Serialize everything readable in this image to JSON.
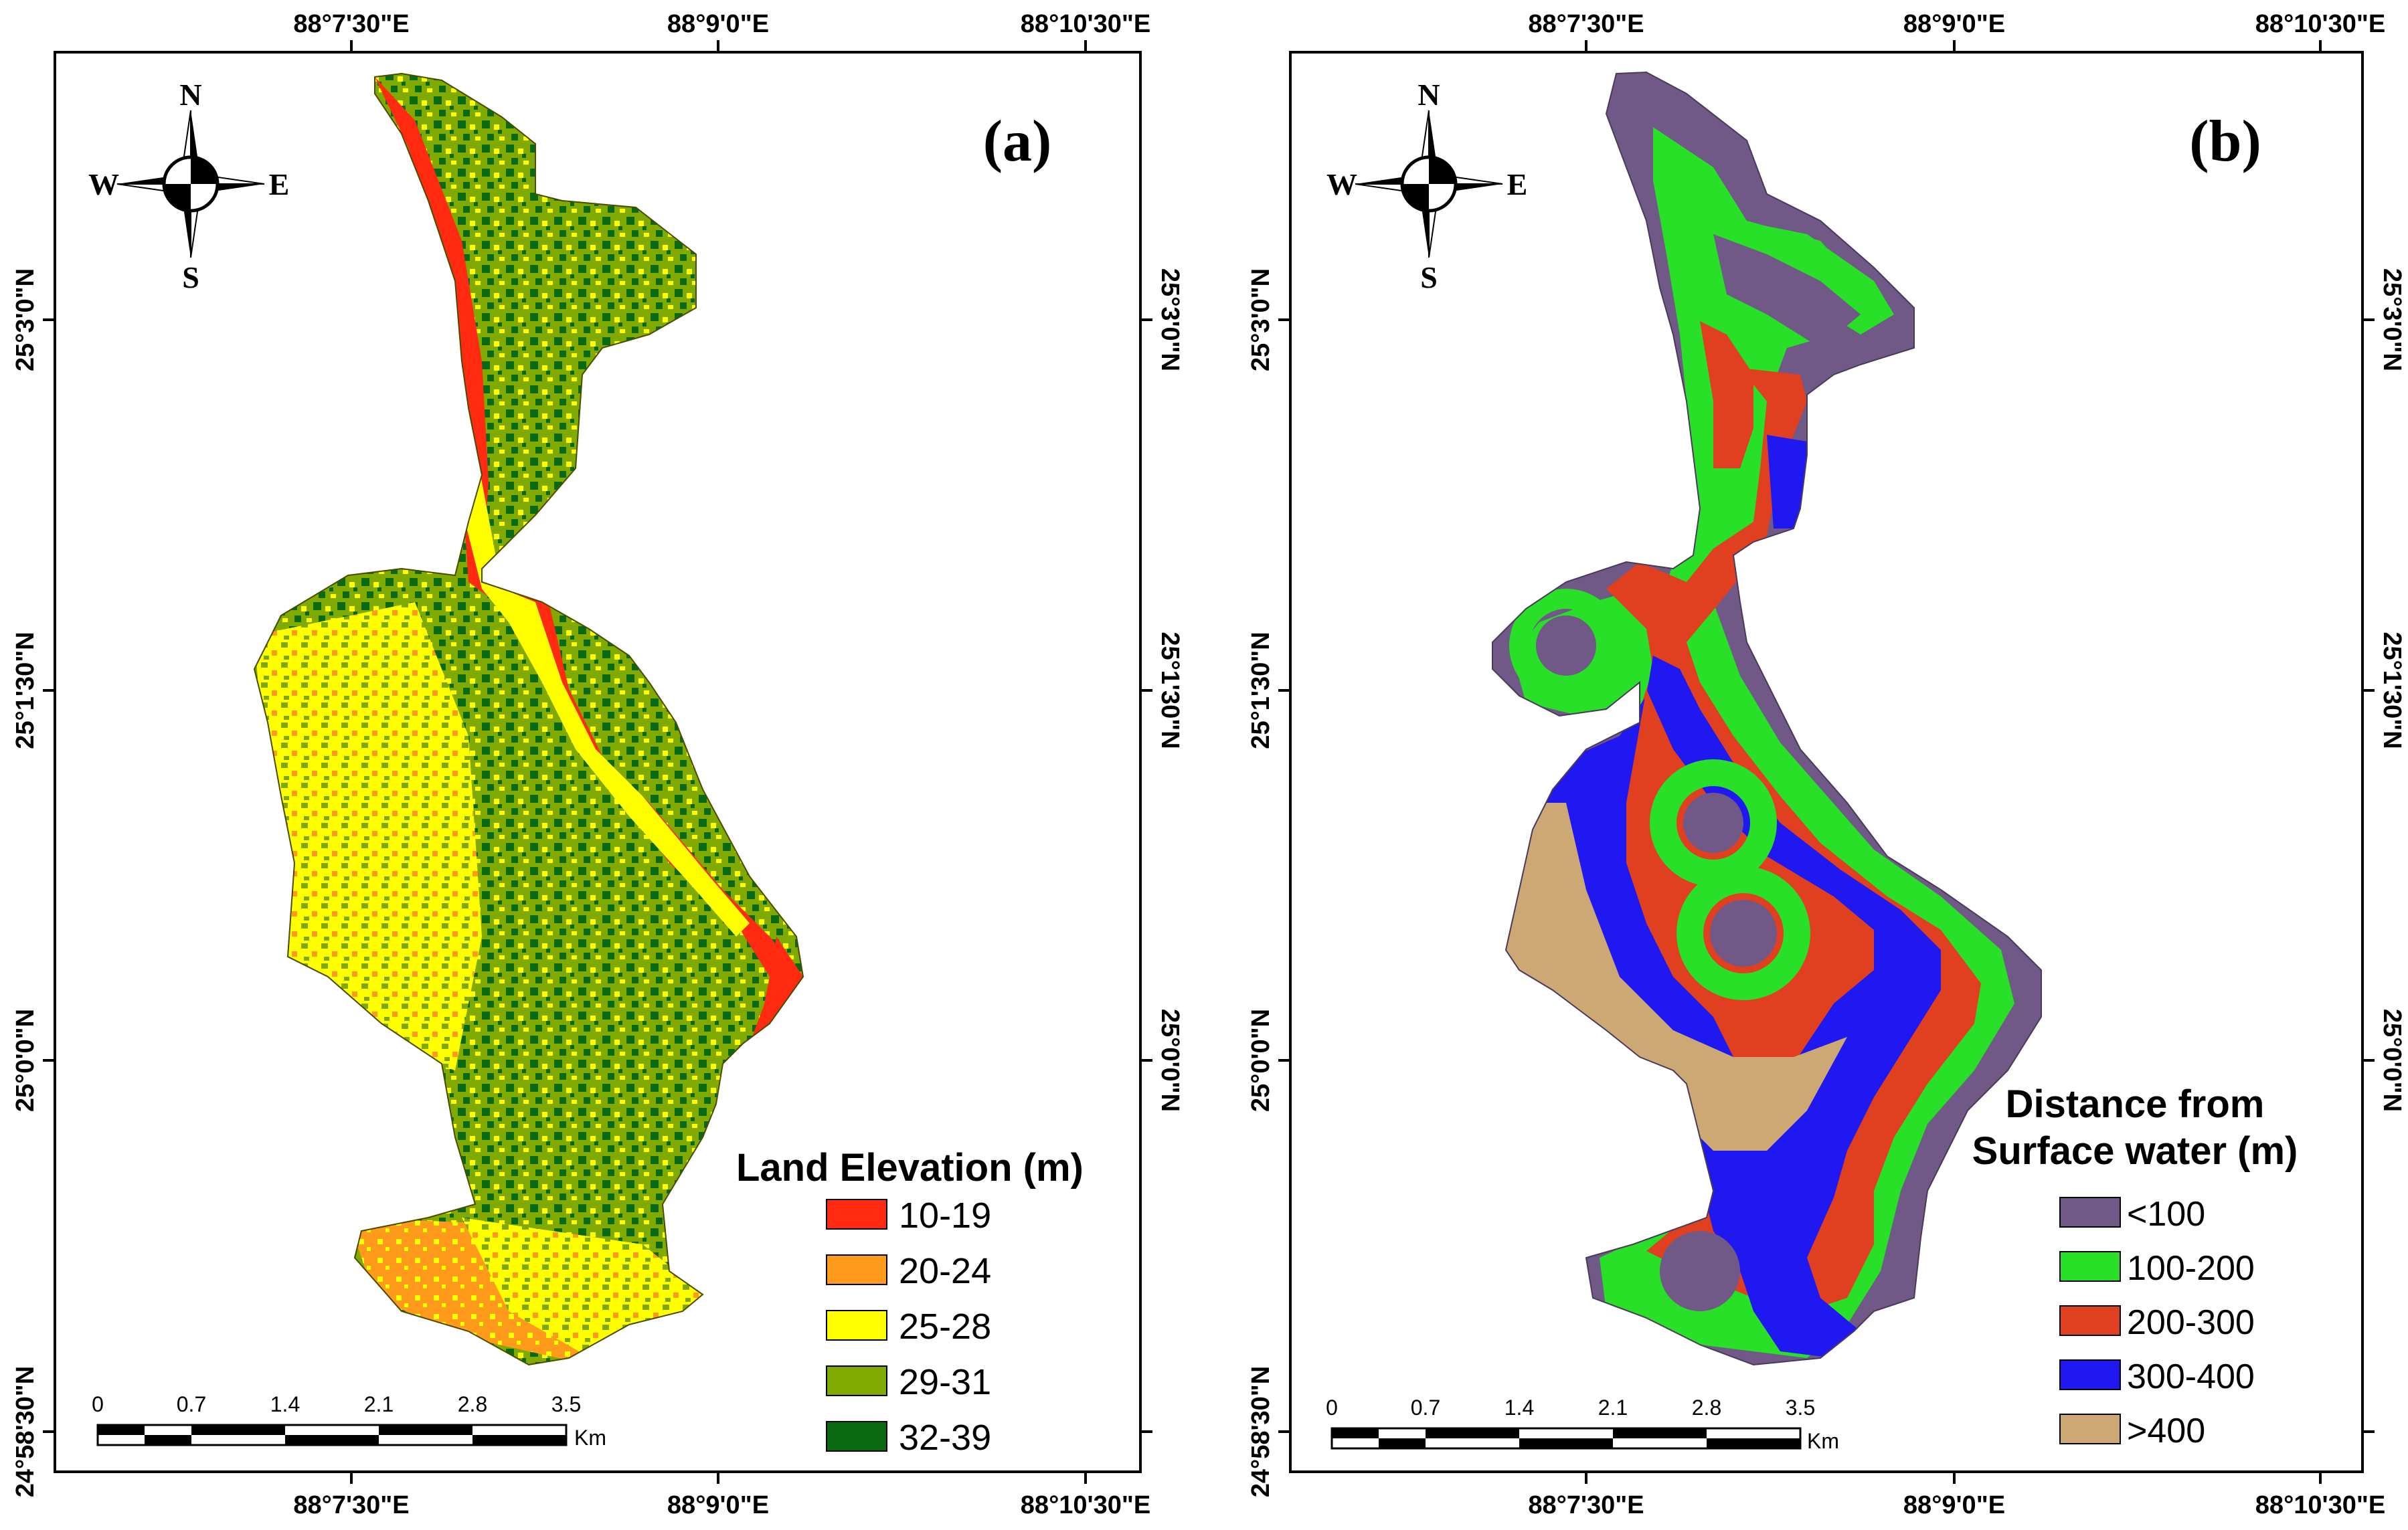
{
  "axes": {
    "top_labels": [
      "88°7'30\"E",
      "88°9'0\"E",
      "88°10'30\"E"
    ],
    "bottom_labels": [
      "88°7'30\"E",
      "88°9'0\"E",
      "88°10'30\"E"
    ],
    "side_labels": [
      "25°3'0\"N",
      "25°1'30\"N",
      "25°0'0\"N"
    ],
    "corner_label": "24°58'30\"N"
  },
  "compass": {
    "n": "N",
    "s": "S",
    "e": "E",
    "w": "W"
  },
  "scale_bar": {
    "ticks": [
      "0",
      "0.7",
      "1.4",
      "2.1",
      "2.8",
      "3.5"
    ],
    "unit": "Km"
  },
  "panel_a": {
    "label": "(a)",
    "legend_title": "Land Elevation (m)",
    "legend": [
      {
        "label": "10-19",
        "color": "#ff2a0f"
      },
      {
        "label": "20-24",
        "color": "#ff9a1a"
      },
      {
        "label": "25-28",
        "color": "#ffff00"
      },
      {
        "label": "29-31",
        "color": "#80aa00"
      },
      {
        "label": "32-39",
        "color": "#0a6a12"
      }
    ]
  },
  "panel_b": {
    "label": "(b)",
    "legend_title_line1": "Distance from",
    "legend_title_line2": "Surface water (m)",
    "legend": [
      {
        "label": "<100",
        "color": "#705887"
      },
      {
        "label": "100-200",
        "color": "#28e028"
      },
      {
        "label": "200-300",
        "color": "#e04020"
      },
      {
        "label": "300-400",
        "color": "#2018f0"
      },
      {
        "label": ">400",
        "color": "#cca874"
      }
    ]
  }
}
